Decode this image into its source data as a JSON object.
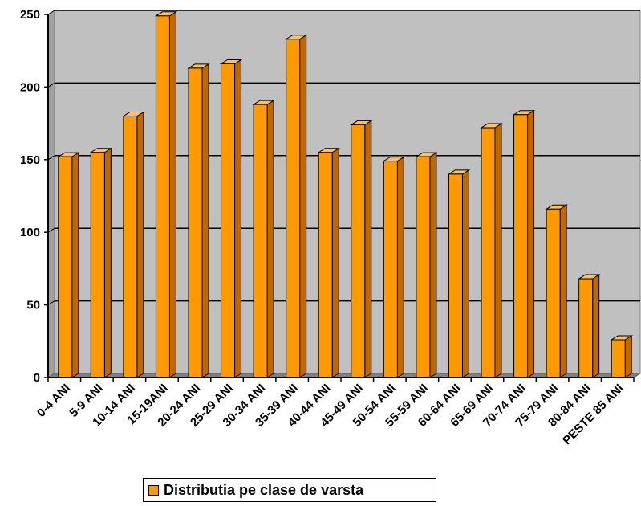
{
  "colors": {
    "plot_background": "#c0c0c0",
    "bar_front": "#ff9900",
    "bar_side": "#c06800",
    "bar_top": "#ffc060",
    "grid": "#000000"
  },
  "chart_data": {
    "type": "bar",
    "categories": [
      "0-4 ANI",
      "5-9 ANI",
      "10-14 ANI",
      "15-19ANI",
      "20-24 ANI",
      "25-29 ANI",
      "30-34 ANI",
      "35-39 ANI",
      "40-44 ANI",
      "45-49 ANI",
      "50-54 ANI",
      "55-59 ANI",
      "60-64 ANI",
      "65-69 ANI",
      "70-74 ANI",
      "75-79 ANI",
      "80-84 ANI",
      "PESTE 85 ANI"
    ],
    "series": [
      {
        "name": "Distributia pe clase de varsta",
        "values": [
          152,
          155,
          180,
          249,
          213,
          216,
          188,
          233,
          155,
          174,
          149,
          152,
          140,
          172,
          181,
          116,
          68,
          26
        ]
      }
    ],
    "yticks": [
      "0",
      "50",
      "100",
      "150",
      "200",
      "250"
    ],
    "ylim": [
      0,
      250
    ],
    "grid": true,
    "legend": "bottom"
  }
}
